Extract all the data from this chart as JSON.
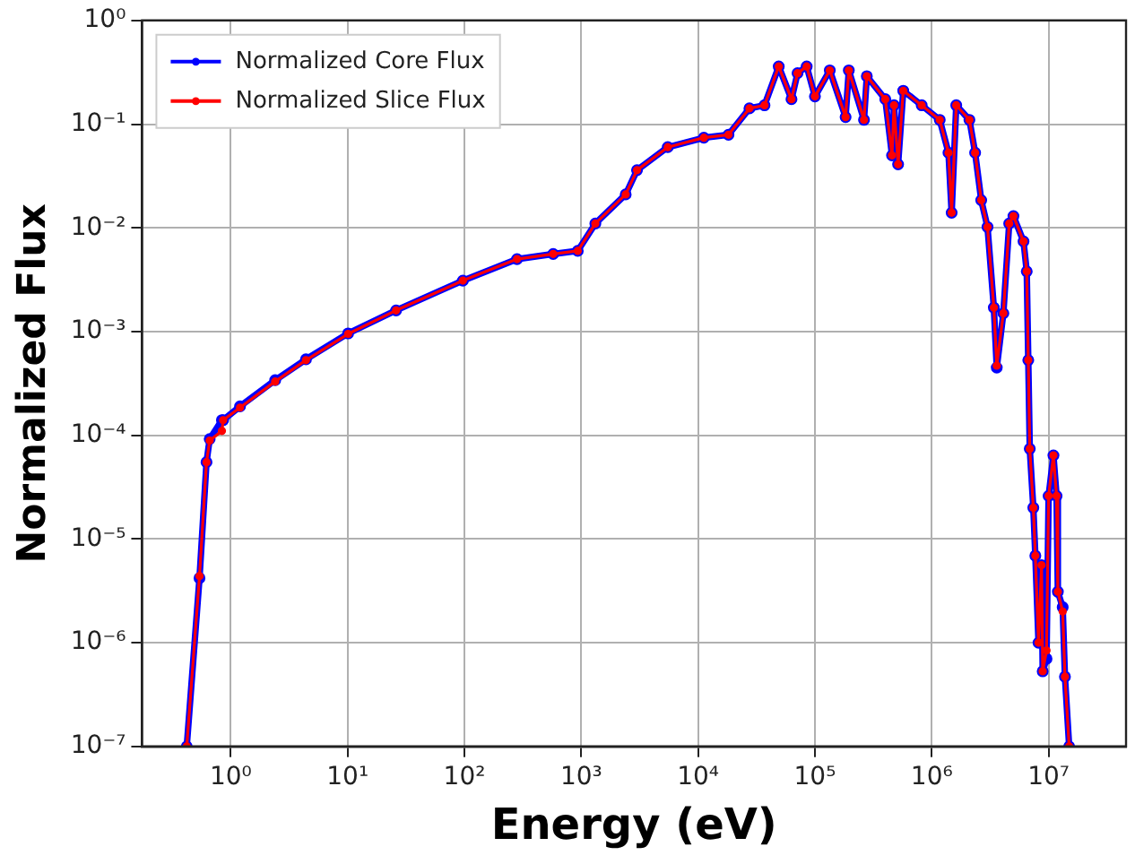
{
  "chart_data": {
    "type": "line",
    "xlabel": "Energy (eV)",
    "ylabel": "Normalized Flux",
    "log": "xy",
    "grid": true,
    "legend": "top left",
    "marker": "circle",
    "line_style": "solid",
    "x": [
      0.42,
      0.54,
      0.62,
      0.66,
      0.84,
      0.86,
      1.2,
      2.4,
      4.4,
      10.1,
      26,
      97,
      282,
      575,
      933,
      1320,
      2400,
      3000,
      5500,
      11200,
      18200,
      27500,
      37000,
      49000,
      63000,
      71000,
      85000,
      100000,
      134000,
      183000,
      195000,
      263000,
      278000,
      400000,
      457000,
      475000,
      515000,
      570000,
      820000,
      1170000,
      1390000,
      1480000,
      1620000,
      2100000,
      2350000,
      2650000,
      3000000,
      3400000,
      3600000,
      4100000,
      4600000,
      5000000,
      6100000,
      6500000,
      6700000,
      6900000,
      7400000,
      7700000,
      8200000,
      8700000,
      8900000,
      9600000,
      10000000,
      11000000,
      11700000,
      12000000,
      13200000,
      13800000,
      15000000
    ],
    "xlim": [
      0.174,
      46000000
    ],
    "ylim": [
      1e-07,
      1
    ],
    "xticks": [
      {
        "value": 1,
        "label": "10⁰"
      },
      {
        "value": 10,
        "label": "10¹"
      },
      {
        "value": 100,
        "label": "10²"
      },
      {
        "value": 1000,
        "label": "10³"
      },
      {
        "value": 10000,
        "label": "10⁴"
      },
      {
        "value": 100000,
        "label": "10⁵"
      },
      {
        "value": 1000000,
        "label": "10⁶"
      },
      {
        "value": 10000000,
        "label": "10⁷"
      }
    ],
    "yticks": [
      {
        "value": 1e-07,
        "label": "10⁻⁷"
      },
      {
        "value": 1e-06,
        "label": "10⁻⁶"
      },
      {
        "value": 1e-05,
        "label": "10⁻⁵"
      },
      {
        "value": 0.0001,
        "label": "10⁻⁴"
      },
      {
        "value": 0.001,
        "label": "10⁻³"
      },
      {
        "value": 0.01,
        "label": "10⁻²"
      },
      {
        "value": 0.1,
        "label": "10⁻¹"
      },
      {
        "value": 1,
        "label": "10⁰"
      }
    ],
    "series": [
      {
        "name": "Normalized Core Flux",
        "color": "#0000ff",
        "values": [
          1e-07,
          4.2e-06,
          5.5e-05,
          9.2e-05,
          0.00014,
          0.00014,
          0.00019,
          0.00034,
          0.00054,
          0.00096,
          0.0016,
          0.0031,
          0.005,
          0.0056,
          0.006,
          0.011,
          0.021,
          0.036,
          0.06,
          0.074,
          0.079,
          0.142,
          0.152,
          0.36,
          0.174,
          0.31,
          0.36,
          0.185,
          0.33,
          0.117,
          0.33,
          0.11,
          0.29,
          0.174,
          0.05,
          0.152,
          0.041,
          0.21,
          0.152,
          0.11,
          0.053,
          0.014,
          0.152,
          0.11,
          0.053,
          0.0185,
          0.0102,
          0.0017,
          0.00045,
          0.0015,
          0.011,
          0.013,
          0.0074,
          0.0038,
          0.00053,
          7.4e-05,
          2e-05,
          6.9e-06,
          1e-06,
          5.6e-06,
          5.3e-07,
          7e-07,
          2.6e-05,
          6.4e-05,
          2.6e-05,
          3.1e-06,
          2.2e-06,
          4.7e-07,
          1e-07
        ]
      },
      {
        "name": "Normalized Slice Flux",
        "color": "#ff0000",
        "values": [
          1e-07,
          4.4e-06,
          5.5e-05,
          8.9e-05,
          0.00011,
          0.00014,
          0.000185,
          0.00033,
          0.00053,
          0.00095,
          0.0016,
          0.0031,
          0.005,
          0.0056,
          0.006,
          0.011,
          0.021,
          0.036,
          0.06,
          0.074,
          0.079,
          0.142,
          0.152,
          0.36,
          0.174,
          0.31,
          0.36,
          0.185,
          0.33,
          0.117,
          0.33,
          0.11,
          0.29,
          0.174,
          0.05,
          0.152,
          0.041,
          0.21,
          0.152,
          0.11,
          0.053,
          0.014,
          0.152,
          0.11,
          0.053,
          0.0185,
          0.0102,
          0.0017,
          0.00047,
          0.0015,
          0.011,
          0.013,
          0.0074,
          0.0038,
          0.00053,
          7.4e-05,
          2e-05,
          6.9e-06,
          1e-06,
          5.6e-06,
          5.3e-07,
          8.4e-07,
          2.6e-05,
          6.4e-05,
          2.6e-05,
          3.1e-06,
          2e-06,
          4.7e-07,
          1e-07
        ]
      }
    ]
  }
}
